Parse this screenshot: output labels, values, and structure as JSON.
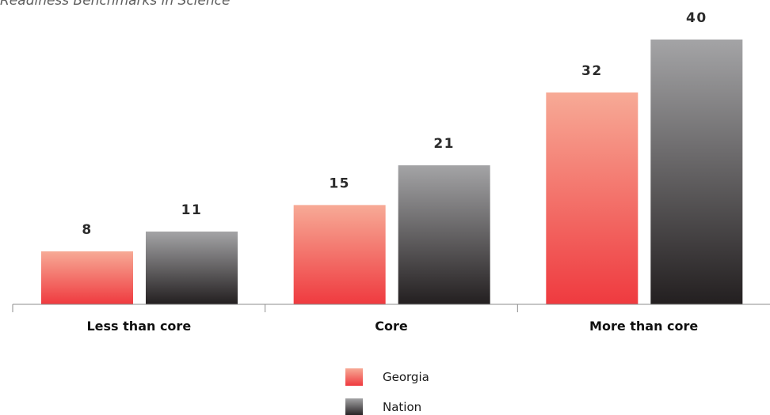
{
  "chart_data": {
    "type": "bar",
    "title": "Readiness Benchmarks in Science",
    "categories": [
      "Less than core",
      "Core",
      "More than core"
    ],
    "series": [
      {
        "name": "Georgia",
        "values": [
          8,
          15,
          32
        ],
        "color_top": "#f7aa96",
        "color_bottom": "#ef3a3f"
      },
      {
        "name": "Nation",
        "values": [
          11,
          21,
          40
        ],
        "color_top": "#a4a4a6",
        "color_bottom": "#231f20"
      }
    ],
    "value_labels": [
      [
        "8",
        "15",
        "32"
      ],
      [
        "11",
        "21",
        "40"
      ]
    ],
    "xlabel": "",
    "ylabel": "",
    "ylim": [
      0,
      40
    ],
    "grid": false,
    "legend": "bottom-center"
  }
}
